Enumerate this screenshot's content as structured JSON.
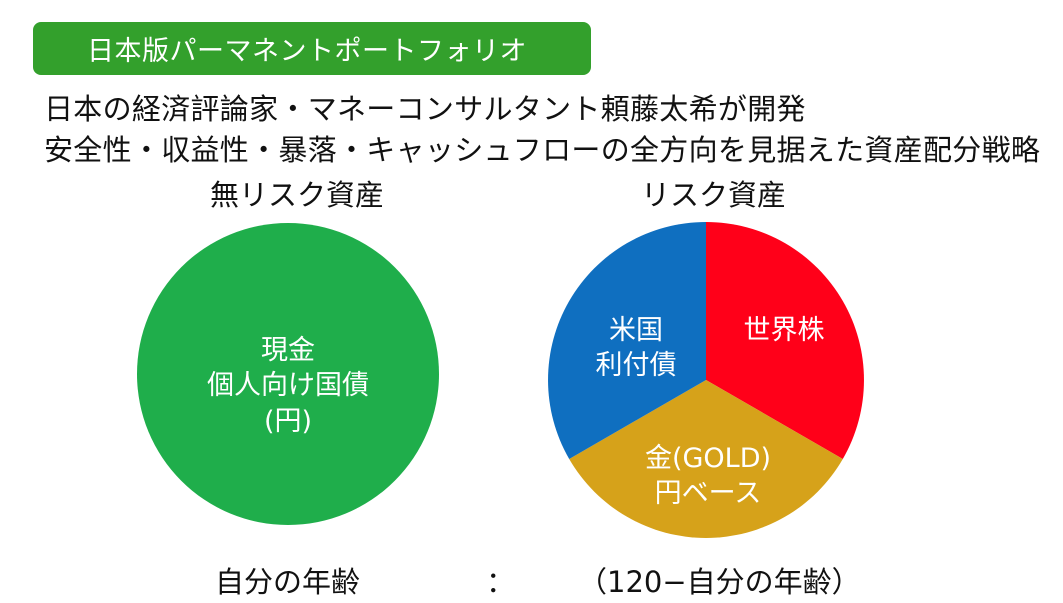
{
  "title": "日本版パーマネントポートフォリオ",
  "subtitle_lines": [
    "日本の経済評論家・マネーコンサルタント頼藤太希が開発",
    "安全性・収益性・暴落・キャッシュフローの全方向を見据えた資産配分戦略"
  ],
  "riskfree": {
    "heading": "無リスク資産",
    "label_lines": [
      "現金",
      "個人向け国債",
      "(円)"
    ],
    "color": "#1fae4b"
  },
  "risk": {
    "heading": "リスク資産",
    "slices": [
      {
        "label_lines": [
          "世界株"
        ],
        "color": "#ff0019"
      },
      {
        "label_lines": [
          "金(GOLD)",
          "円ベース"
        ],
        "color": "#d6a21a"
      },
      {
        "label_lines": [
          "米国",
          "利付債"
        ],
        "color": "#0f6fc0"
      }
    ]
  },
  "footer": {
    "left": "自分の年齢",
    "colon": "：",
    "right": "（120−自分の年齢）"
  }
}
